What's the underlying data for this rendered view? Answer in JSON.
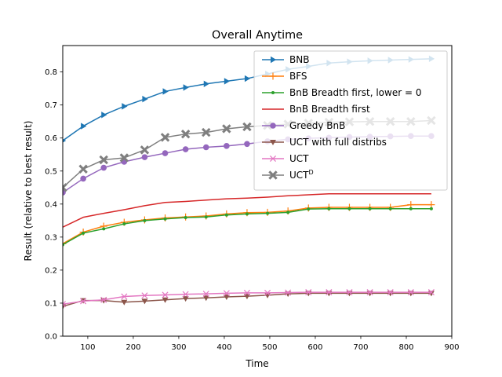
{
  "chart_data": {
    "type": "line",
    "title": "Overall Anytime",
    "xlabel": "Time",
    "ylabel": "Result (relative to best result)",
    "xlim": [
      45,
      900
    ],
    "ylim": [
      0.0,
      0.88
    ],
    "xticks": [
      "100",
      "200",
      "300",
      "400",
      "500",
      "600",
      "700",
      "800",
      "900"
    ],
    "yticks": [
      "0.0",
      "0.1",
      "0.2",
      "0.3",
      "0.4",
      "0.5",
      "0.6",
      "0.7",
      "0.8"
    ],
    "grid": false,
    "legend_position": "upper-right",
    "x": [
      45,
      90,
      135,
      180,
      225,
      270,
      315,
      360,
      405,
      450,
      495,
      540,
      585,
      630,
      675,
      720,
      765,
      810,
      855
    ],
    "series": [
      {
        "name": "BNB",
        "color": "#1f77b4",
        "marker": "triangle-right",
        "values": [
          0.592,
          0.636,
          0.67,
          0.696,
          0.718,
          0.741,
          0.753,
          0.764,
          0.772,
          0.78,
          0.794,
          0.808,
          0.817,
          0.827,
          0.831,
          0.834,
          0.836,
          0.838,
          0.84
        ]
      },
      {
        "name": "BFS",
        "color": "#ff7f0e",
        "marker": "plus",
        "values": [
          0.28,
          0.315,
          0.333,
          0.345,
          0.352,
          0.358,
          0.361,
          0.364,
          0.37,
          0.374,
          0.375,
          0.379,
          0.388,
          0.39,
          0.39,
          0.39,
          0.39,
          0.398,
          0.398
        ]
      },
      {
        "name": "BnB Breadth first, lower = 0",
        "color": "#2ca02c",
        "marker": "dot",
        "values": [
          0.277,
          0.312,
          0.325,
          0.34,
          0.35,
          0.355,
          0.359,
          0.361,
          0.367,
          0.37,
          0.372,
          0.375,
          0.385,
          0.386,
          0.386,
          0.386,
          0.386,
          0.386,
          0.386
        ]
      },
      {
        "name": "BnB Breadth first",
        "color": "#d62728",
        "marker": "none",
        "values": [
          0.33,
          0.36,
          0.372,
          0.383,
          0.395,
          0.405,
          0.408,
          0.412,
          0.416,
          0.418,
          0.421,
          0.425,
          0.428,
          0.431,
          0.431,
          0.431,
          0.431,
          0.431,
          0.431
        ]
      },
      {
        "name": "Greedy BnB",
        "color": "#9467bd",
        "marker": "circle",
        "values": [
          0.435,
          0.477,
          0.51,
          0.528,
          0.542,
          0.554,
          0.566,
          0.572,
          0.576,
          0.582,
          0.59,
          0.596,
          0.599,
          0.601,
          0.603,
          0.604,
          0.605,
          0.606,
          0.606
        ]
      },
      {
        "name": "UCT with full distribs",
        "color": "#8c564b",
        "marker": "triangle-down",
        "values": [
          0.09,
          0.108,
          0.108,
          0.103,
          0.106,
          0.11,
          0.114,
          0.116,
          0.119,
          0.121,
          0.124,
          0.128,
          0.13,
          0.13,
          0.13,
          0.13,
          0.13,
          0.13,
          0.13
        ]
      },
      {
        "name": "UCT",
        "color": "#e377c2",
        "marker": "x",
        "values": [
          0.097,
          0.106,
          0.11,
          0.12,
          0.123,
          0.125,
          0.127,
          0.128,
          0.13,
          0.131,
          0.131,
          0.132,
          0.133,
          0.133,
          0.133,
          0.133,
          0.133,
          0.133,
          0.133
        ]
      },
      {
        "name": "UCT",
        "name_sup": "D",
        "color": "#7f7f7f",
        "marker": "x-filled",
        "values": [
          0.45,
          0.506,
          0.534,
          0.54,
          0.564,
          0.602,
          0.612,
          0.617,
          0.628,
          0.634,
          0.638,
          0.642,
          0.645,
          0.648,
          0.649,
          0.65,
          0.65,
          0.65,
          0.653
        ]
      }
    ]
  }
}
